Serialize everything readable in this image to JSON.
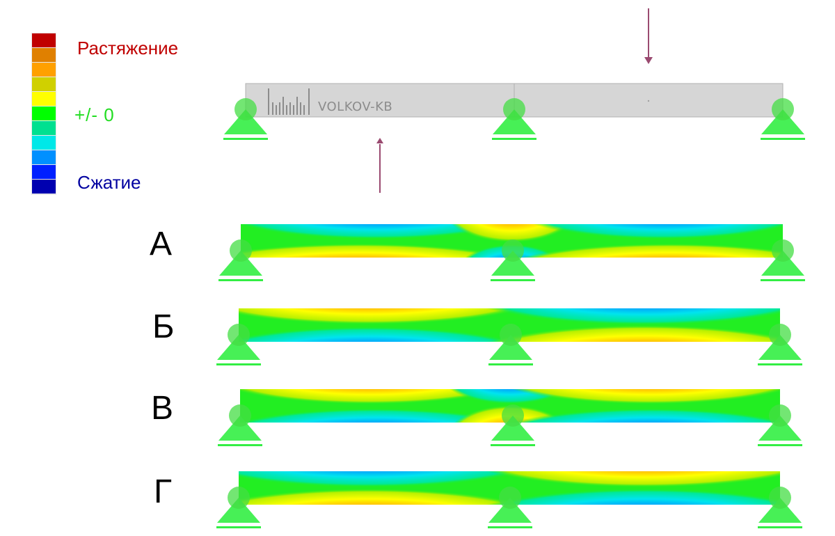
{
  "legend": {
    "tension_label": "Растяжение",
    "zero_label": "+/- 0",
    "compression_label": "Сжатие",
    "scale_colors": [
      "#c00000",
      "#e08000",
      "#ffa000",
      "#d0d000",
      "#ffff00",
      "#00ff00",
      "#00e090",
      "#00e8e8",
      "#0090ff",
      "#0020ff",
      "#0000b0"
    ]
  },
  "scheme": {
    "watermark": "VOLKOV-KB",
    "load_up": "upward force under the left span",
    "load_down": "downward force on the right span",
    "support_icon": "pin-support-icon"
  },
  "variants": [
    {
      "label": "А",
      "left_span": "compression top / tension bottom",
      "right_span": "compression top / tension bottom",
      "middle_support": "tension top / compression bottom"
    },
    {
      "label": "Б",
      "left_span": "tension top / compression bottom",
      "right_span": "compression top / tension bottom",
      "middle_support": "neutral"
    },
    {
      "label": "В",
      "left_span": "tension top / compression bottom",
      "right_span": "tension top / compression bottom",
      "middle_support": "compression top / tension bottom"
    },
    {
      "label": "Г",
      "left_span": "compression top / tension bottom",
      "right_span": "tension top / compression bottom",
      "middle_support": "neutral"
    }
  ],
  "colors": {
    "support": "#33ee44",
    "arrow": "#9a4a70",
    "beam_gray": "#d8d8d8",
    "neutral": "#22ee22",
    "tension_text": "#c00000",
    "compression_text": "#0000a0"
  }
}
